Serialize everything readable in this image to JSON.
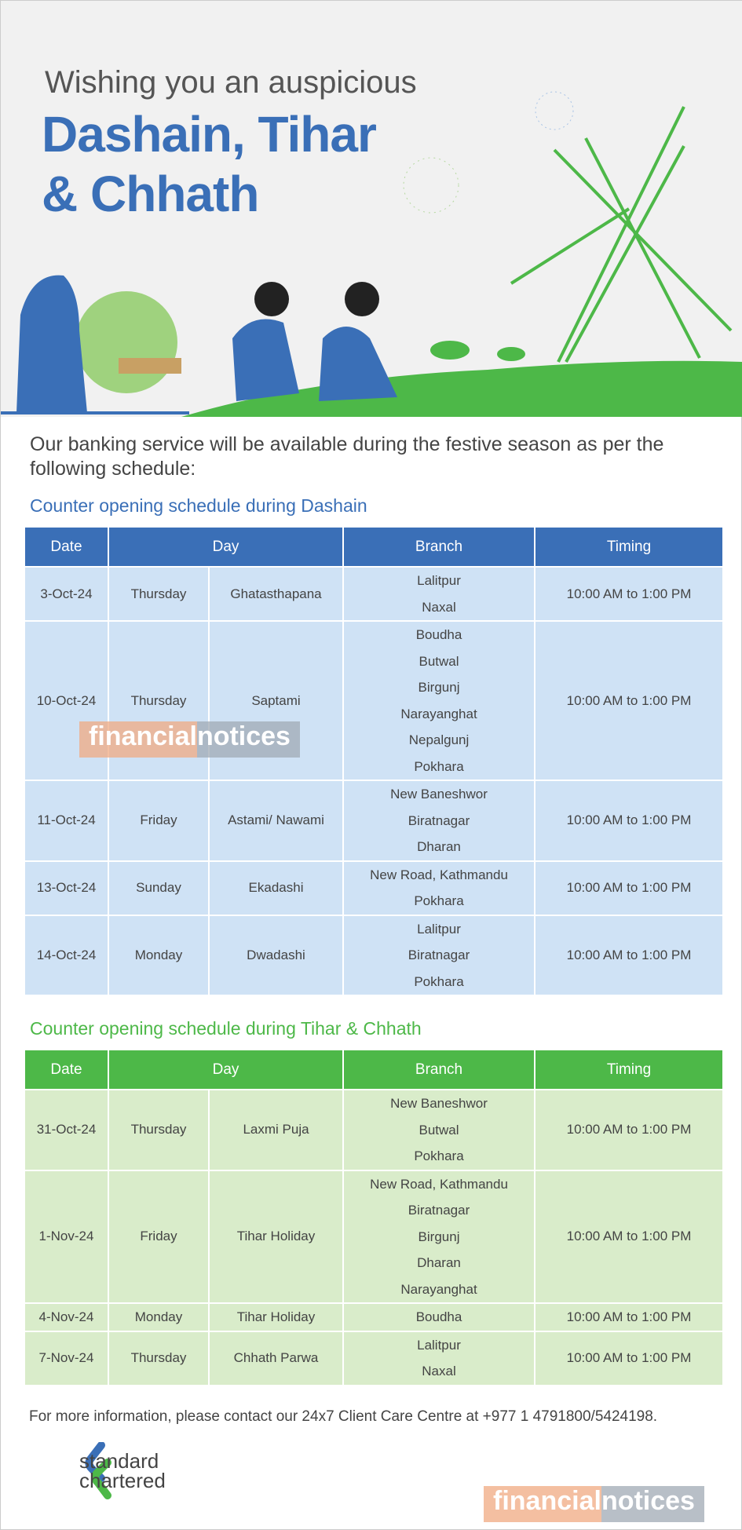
{
  "banner": {
    "greeting": "Wishing you an auspicious",
    "title_line1": "Dashain, Tihar",
    "title_line2": "& Chhath"
  },
  "intro": "Our banking service will be available during the festive season as per the following schedule:",
  "colors": {
    "blue": "#3a6fb7",
    "green": "#4db848",
    "blue_cell": "#cfe2f5",
    "green_cell": "#d9ecca"
  },
  "headers": {
    "date": "Date",
    "day": "Day",
    "branch": "Branch",
    "timing": "Timing"
  },
  "dashain": {
    "title": "Counter opening schedule during Dashain",
    "rows": [
      {
        "date": "3-Oct-24",
        "weekday": "Thursday",
        "occasion": "Ghatasthapana",
        "branches": [
          "Lalitpur",
          "Naxal"
        ],
        "timing": "10:00 AM to 1:00 PM"
      },
      {
        "date": "10-Oct-24",
        "weekday": "Thursday",
        "occasion": "Saptami",
        "branches": [
          "Boudha",
          "Butwal",
          "Birgunj",
          "Narayanghat",
          "Nepalgunj",
          "Pokhara"
        ],
        "timing": "10:00 AM to 1:00 PM"
      },
      {
        "date": "11-Oct-24",
        "weekday": "Friday",
        "occasion": "Astami/ Nawami",
        "branches": [
          "New Baneshwor",
          "Biratnagar",
          "Dharan"
        ],
        "timing": "10:00 AM to 1:00 PM"
      },
      {
        "date": "13-Oct-24",
        "weekday": "Sunday",
        "occasion": "Ekadashi",
        "branches": [
          "New Road, Kathmandu",
          "Pokhara"
        ],
        "timing": "10:00 AM to 1:00 PM"
      },
      {
        "date": "14-Oct-24",
        "weekday": "Monday",
        "occasion": "Dwadashi",
        "branches": [
          "Lalitpur",
          "Biratnagar",
          "Pokhara"
        ],
        "timing": "10:00 AM to 1:00 PM"
      }
    ]
  },
  "tihar": {
    "title": "Counter opening schedule during Tihar & Chhath",
    "rows": [
      {
        "date": "31-Oct-24",
        "weekday": "Thursday",
        "occasion": "Laxmi Puja",
        "branches": [
          "New Baneshwor",
          "Butwal",
          "Pokhara"
        ],
        "timing": "10:00 AM to 1:00 PM"
      },
      {
        "date": "1-Nov-24",
        "weekday": "Friday",
        "occasion": "Tihar Holiday",
        "branches": [
          "New Road, Kathmandu",
          "Biratnagar",
          "Birgunj",
          "Dharan",
          "Narayanghat"
        ],
        "timing": "10:00 AM to 1:00 PM"
      },
      {
        "date": "4-Nov-24",
        "weekday": "Monday",
        "occasion": "Tihar Holiday",
        "branches": [
          "Boudha"
        ],
        "timing": "10:00 AM to 1:00 PM"
      },
      {
        "date": "7-Nov-24",
        "weekday": "Thursday",
        "occasion": "Chhath Parwa",
        "branches": [
          "Lalitpur",
          "Naxal"
        ],
        "timing": "10:00 AM to 1:00 PM"
      }
    ]
  },
  "footer": "For more information, please contact our 24x7 Client Care Centre at +977 1 4791800/5424198.",
  "logo": {
    "line1": "standard",
    "line2": "chartered"
  },
  "watermark": {
    "part1": "financial",
    "part2": "notices"
  }
}
